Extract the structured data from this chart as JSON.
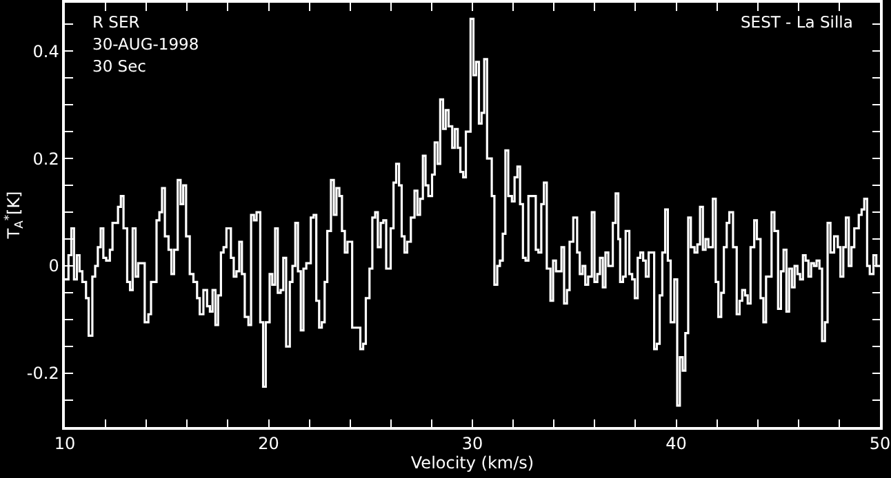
{
  "chart_data": {
    "type": "step",
    "xlabel": "Velocity (km/s)",
    "ylabel": "T$_{A}$$^{*}$[K]",
    "annotations": [
      "R SER",
      "30-AUG-1998",
      "30 Sec",
      "SEST - La Silla"
    ],
    "xlim": [
      10,
      50
    ],
    "ylim": [
      -0.3,
      0.49
    ],
    "xticks": [
      10,
      {
        "value": 12,
        "label": null
      },
      {
        "value": 14,
        "label": null
      },
      {
        "value": 16,
        "label": null
      },
      {
        "value": 18,
        "label": null
      },
      20,
      {
        "value": 22,
        "label": null
      },
      {
        "value": 24,
        "label": null
      },
      {
        "value": 26,
        "label": null
      },
      {
        "value": 28,
        "label": null
      },
      30,
      {
        "value": 32,
        "label": null
      },
      {
        "value": 34,
        "label": null
      },
      {
        "value": 36,
        "label": null
      },
      {
        "value": 38,
        "label": null
      },
      40,
      {
        "value": 42,
        "label": null
      },
      {
        "value": 44,
        "label": null
      },
      {
        "value": 46,
        "label": null
      },
      {
        "value": 48,
        "label": null
      },
      50
    ],
    "yticks": [
      {
        "value": -0.25,
        "label": null
      },
      -0.2,
      {
        "value": -0.15,
        "label": null
      },
      {
        "value": -0.1,
        "label": null
      },
      {
        "value": -0.05,
        "label": null
      },
      0,
      {
        "value": 0.05,
        "label": null
      },
      {
        "value": 0.1,
        "label": null
      },
      {
        "value": 0.15,
        "label": null
      },
      0.2,
      {
        "value": 0.25,
        "label": null
      },
      {
        "value": 0.3,
        "label": null
      },
      {
        "value": 0.35,
        "label": null
      },
      0.4,
      {
        "value": 0.45,
        "label": null
      }
    ],
    "grid": false,
    "marker": "none",
    "line_style": "solid",
    "series": [
      {
        "color": "#ffffff",
        "x": [
          10.0,
          10.18,
          10.32,
          10.45,
          10.59,
          10.72,
          10.86,
          11.04,
          11.17,
          11.35,
          11.49,
          11.62,
          11.76,
          11.89,
          12.03,
          12.21,
          12.34,
          12.61,
          12.75,
          12.88,
          13.06,
          13.2,
          13.33,
          13.47,
          13.6,
          13.92,
          14.1,
          14.23,
          14.5,
          14.64,
          14.77,
          14.91,
          15.09,
          15.23,
          15.36,
          15.54,
          15.68,
          15.81,
          15.95,
          16.13,
          16.31,
          16.49,
          16.62,
          16.8,
          16.98,
          17.12,
          17.25,
          17.39,
          17.52,
          17.66,
          17.79,
          17.93,
          18.15,
          18.29,
          18.42,
          18.56,
          18.69,
          18.83,
          19.01,
          19.14,
          19.28,
          19.41,
          19.59,
          19.73,
          19.86,
          20.05,
          20.18,
          20.32,
          20.45,
          20.59,
          20.72,
          20.86,
          21.04,
          21.17,
          21.31,
          21.44,
          21.58,
          21.71,
          21.85,
          22.07,
          22.21,
          22.34,
          22.48,
          22.61,
          22.75,
          22.88,
          23.06,
          23.2,
          23.33,
          23.47,
          23.6,
          23.74,
          23.87,
          24.1,
          24.5,
          24.64,
          24.77,
          24.95,
          25.09,
          25.23,
          25.36,
          25.5,
          25.63,
          25.77,
          25.99,
          26.13,
          26.26,
          26.4,
          26.53,
          26.67,
          26.8,
          26.98,
          27.16,
          27.3,
          27.43,
          27.57,
          27.7,
          27.84,
          28.02,
          28.15,
          28.29,
          28.42,
          28.56,
          28.69,
          28.83,
          29.01,
          29.14,
          29.28,
          29.41,
          29.55,
          29.68,
          29.91,
          30.05,
          30.18,
          30.32,
          30.45,
          30.58,
          30.72,
          30.95,
          31.08,
          31.22,
          31.35,
          31.49,
          31.62,
          31.76,
          31.94,
          32.07,
          32.21,
          32.34,
          32.48,
          32.61,
          32.75,
          32.97,
          33.11,
          33.24,
          33.38,
          33.51,
          33.65,
          33.83,
          33.96,
          34.1,
          34.37,
          34.5,
          34.64,
          34.77,
          34.95,
          35.14,
          35.27,
          35.41,
          35.54,
          35.68,
          35.86,
          35.99,
          36.13,
          36.26,
          36.4,
          36.53,
          36.67,
          36.89,
          37.03,
          37.16,
          37.25,
          37.39,
          37.52,
          37.7,
          37.84,
          37.97,
          38.11,
          38.24,
          38.38,
          38.51,
          38.65,
          38.92,
          39.05,
          39.19,
          39.32,
          39.46,
          39.59,
          39.73,
          39.91,
          40.05,
          40.18,
          40.32,
          40.45,
          40.59,
          40.72,
          40.9,
          41.04,
          41.17,
          41.31,
          41.44,
          41.58,
          41.8,
          41.94,
          42.07,
          42.21,
          42.34,
          42.48,
          42.61,
          42.79,
          42.97,
          43.11,
          43.24,
          43.38,
          43.51,
          43.65,
          43.83,
          43.96,
          44.14,
          44.28,
          44.41,
          44.68,
          44.82,
          45.0,
          45.14,
          45.27,
          45.41,
          45.54,
          45.68,
          45.81,
          45.95,
          46.08,
          46.22,
          46.35,
          46.49,
          46.62,
          46.76,
          46.89,
          47.03,
          47.16,
          47.3,
          47.43,
          47.57,
          47.75,
          47.93,
          48.06,
          48.2,
          48.33,
          48.47,
          48.6,
          48.74,
          48.96,
          49.1,
          49.23,
          49.37,
          49.5,
          49.68,
          49.82,
          50.0
        ],
        "values": [
          -0.025,
          0.02,
          0.07,
          -0.025,
          0.02,
          -0.01,
          -0.03,
          -0.06,
          -0.13,
          -0.02,
          0.0,
          0.035,
          0.07,
          0.015,
          0.01,
          0.03,
          0.08,
          0.11,
          0.13,
          0.07,
          -0.03,
          -0.045,
          0.07,
          -0.02,
          0.005,
          -0.105,
          -0.09,
          -0.03,
          0.085,
          0.1,
          0.145,
          0.055,
          0.03,
          -0.015,
          0.03,
          0.16,
          0.115,
          0.15,
          0.055,
          -0.015,
          -0.03,
          -0.06,
          -0.09,
          -0.045,
          -0.075,
          -0.085,
          -0.045,
          -0.11,
          -0.055,
          0.025,
          0.035,
          0.07,
          0.015,
          -0.02,
          -0.01,
          0.045,
          -0.015,
          -0.095,
          -0.11,
          0.095,
          0.085,
          0.1,
          -0.105,
          -0.225,
          -0.105,
          -0.015,
          -0.035,
          0.07,
          -0.05,
          -0.045,
          0.015,
          -0.15,
          -0.03,
          0.0,
          0.08,
          -0.01,
          -0.12,
          -0.005,
          0.005,
          0.09,
          0.095,
          -0.065,
          -0.115,
          -0.105,
          -0.03,
          0.065,
          0.16,
          0.095,
          0.145,
          0.13,
          0.065,
          0.025,
          0.045,
          -0.115,
          -0.155,
          -0.145,
          -0.06,
          -0.005,
          0.09,
          0.1,
          0.035,
          0.08,
          0.085,
          -0.005,
          0.07,
          0.155,
          0.19,
          0.15,
          0.055,
          0.025,
          0.045,
          0.09,
          0.14,
          0.095,
          0.125,
          0.205,
          0.15,
          0.13,
          0.17,
          0.23,
          0.19,
          0.31,
          0.255,
          0.29,
          0.26,
          0.22,
          0.255,
          0.22,
          0.175,
          0.165,
          0.25,
          0.46,
          0.355,
          0.38,
          0.265,
          0.285,
          0.385,
          0.2,
          0.13,
          -0.035,
          0.0,
          0.01,
          0.06,
          0.215,
          0.13,
          0.12,
          0.165,
          0.185,
          0.115,
          0.015,
          0.01,
          0.13,
          0.13,
          0.03,
          0.025,
          0.115,
          0.155,
          -0.005,
          -0.065,
          0.01,
          -0.01,
          0.035,
          -0.07,
          -0.045,
          0.045,
          0.09,
          0.025,
          -0.015,
          0.0,
          -0.035,
          -0.02,
          0.1,
          -0.03,
          -0.015,
          0.015,
          -0.04,
          0.025,
          0.0,
          0.08,
          0.135,
          0.05,
          -0.03,
          -0.02,
          0.065,
          -0.015,
          -0.025,
          -0.06,
          0.015,
          0.025,
          0.01,
          -0.02,
          0.025,
          -0.155,
          -0.145,
          -0.055,
          0.025,
          0.105,
          0.01,
          -0.105,
          -0.025,
          -0.26,
          -0.17,
          -0.195,
          -0.125,
          0.09,
          0.035,
          0.025,
          0.04,
          0.11,
          0.03,
          0.05,
          0.035,
          0.125,
          -0.03,
          -0.095,
          -0.05,
          0.035,
          0.08,
          0.1,
          0.035,
          -0.09,
          -0.065,
          -0.045,
          -0.055,
          -0.07,
          0.035,
          0.085,
          0.05,
          -0.06,
          -0.105,
          -0.02,
          0.1,
          0.065,
          -0.08,
          -0.01,
          0.03,
          -0.085,
          -0.005,
          -0.04,
          0.0,
          -0.015,
          -0.025,
          0.02,
          0.01,
          -0.02,
          0.005,
          0.0,
          0.01,
          -0.005,
          -0.14,
          -0.105,
          0.08,
          0.025,
          0.055,
          0.035,
          -0.02,
          0.035,
          0.09,
          0.0,
          0.035,
          0.07,
          0.095,
          0.105,
          0.125,
          0.0,
          -0.015,
          0.02,
          0.0,
          0.0
        ]
      }
    ]
  }
}
